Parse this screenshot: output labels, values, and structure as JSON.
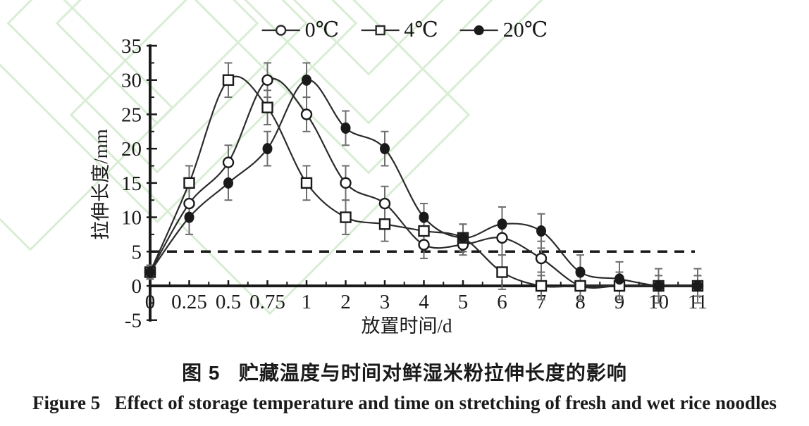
{
  "watermark": {
    "color": "#d9edd4"
  },
  "chart_data": {
    "type": "line",
    "title": "",
    "xlabel": "放置时间/d",
    "ylabel": "拉伸长度/mm",
    "categories": [
      "0",
      "0.25",
      "0.5",
      "0.75",
      "1",
      "2",
      "3",
      "4",
      "5",
      "6",
      "7",
      "8",
      "9",
      "10",
      "11"
    ],
    "series": [
      {
        "name": "0℃",
        "marker": "open-circle",
        "values": [
          2,
          12,
          18,
          30,
          25,
          15,
          12,
          6,
          6,
          7,
          4,
          0,
          0,
          0,
          0
        ],
        "errors": [
          1,
          2.5,
          2.5,
          2.5,
          2.5,
          2.5,
          2.5,
          2,
          1.5,
          2.5,
          2.5,
          2,
          2,
          1.5,
          1.5
        ]
      },
      {
        "name": "4℃",
        "marker": "open-square",
        "values": [
          2,
          15,
          30,
          26,
          15,
          10,
          9,
          8,
          7,
          2,
          0,
          0,
          0,
          0,
          0
        ],
        "errors": [
          1,
          2.5,
          2.5,
          2.5,
          2.5,
          2.5,
          2.5,
          2.5,
          2,
          2.5,
          2,
          2,
          2,
          1.5,
          1.5
        ]
      },
      {
        "name": "20℃",
        "marker": "filled-circle",
        "values": [
          2,
          10,
          15,
          20,
          30,
          23,
          20,
          10,
          7,
          9,
          8,
          2,
          1,
          0,
          0
        ],
        "errors": [
          1,
          2.5,
          2.5,
          2.5,
          2.5,
          2.5,
          2.5,
          2,
          2,
          2.5,
          2.5,
          2.5,
          2.5,
          2.5,
          2.5
        ]
      }
    ],
    "ylim": [
      -5,
      35
    ],
    "ytick_step": 5,
    "ytick_labels": [
      "-5",
      "0",
      "5",
      "10",
      "15",
      "20",
      "25",
      "30",
      "35"
    ],
    "reference_line": {
      "y": 5,
      "style": "dashed"
    },
    "grid": false,
    "legend_position": "top-center",
    "axis_color": "#1a1a1a",
    "line_color": "#2b2b2b",
    "error_bar_color": "#6e6e6e"
  },
  "caption": {
    "zh": "图 5   贮藏温度与时间对鲜湿米粉拉伸长度的影响",
    "en": "Figure 5   Effect of storage temperature and time on stretching of fresh and wet rice noodles"
  }
}
